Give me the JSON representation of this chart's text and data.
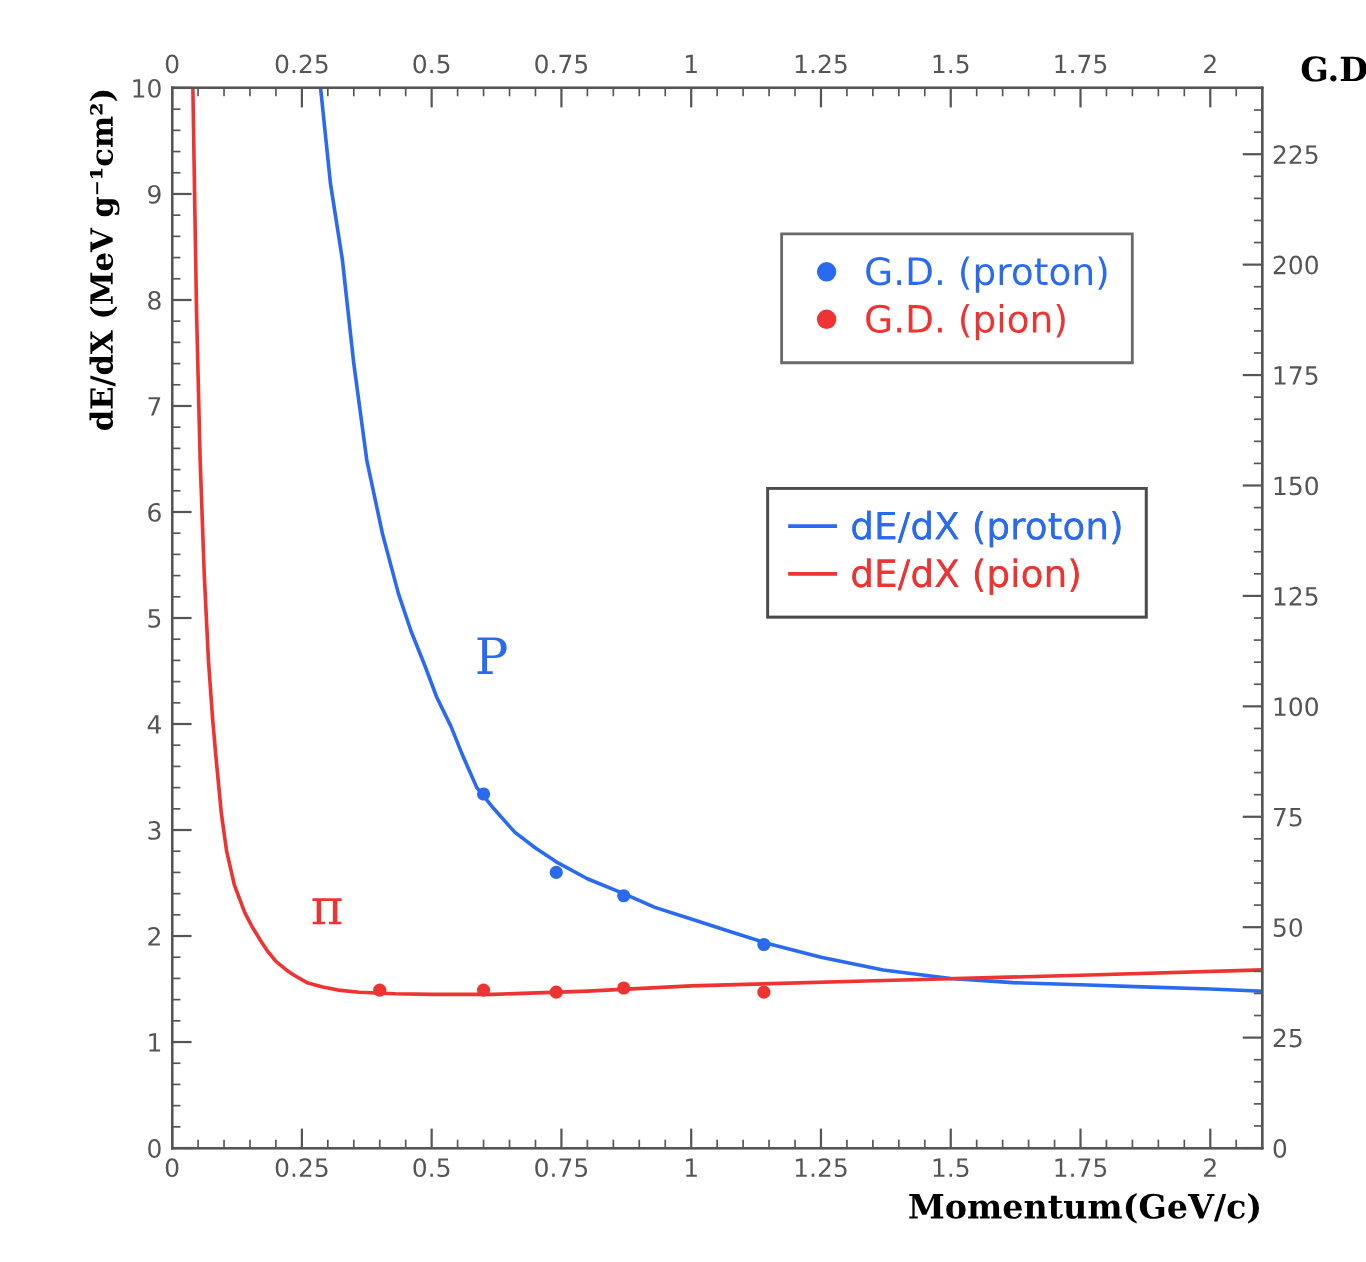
{
  "chart_data": {
    "type": "line",
    "xlabel": "Momentum(GeV/c)",
    "ylabel": "dE/dX (MeV g⁻¹cm²)",
    "y2label": "G.D",
    "xlim": [
      0,
      2.1
    ],
    "xticks": [
      0,
      0.25,
      0.5,
      0.75,
      1,
      1.25,
      1.5,
      1.75,
      2
    ],
    "x2lim": [
      0,
      2.1
    ],
    "x2ticks": [
      0,
      0.25,
      0.5,
      0.75,
      1,
      1.25,
      1.5,
      1.75,
      2
    ],
    "ylim": [
      0,
      10
    ],
    "yticks": [
      0,
      1,
      2,
      3,
      4,
      5,
      6,
      7,
      8,
      9,
      10
    ],
    "y2lim": [
      0,
      240
    ],
    "y2ticks": [
      0,
      25,
      50,
      75,
      100,
      125,
      150,
      175,
      200,
      225
    ],
    "grid": false,
    "legend": "top right",
    "series": [
      {
        "name": "G.D. (proton)",
        "type": "scatter",
        "marker": "circle",
        "color": "#2a6af0",
        "x": [
          0.6,
          0.74,
          0.87,
          1.14
        ],
        "values": [
          3.34,
          2.6,
          2.38,
          1.92
        ]
      },
      {
        "name": "G.D. (pion)",
        "type": "scatter",
        "marker": "circle",
        "color": "#ee3333",
        "x": [
          0.4,
          0.6,
          0.74,
          0.87,
          1.14
        ],
        "values": [
          1.49,
          1.49,
          1.47,
          1.51,
          1.47
        ]
      },
      {
        "name": "dE/dX (proton)",
        "marker": "none",
        "line_style": "solid",
        "color": "#2a6af0",
        "x": [
          0.286,
          0.305,
          0.328,
          0.35,
          0.375,
          0.405,
          0.436,
          0.46,
          0.487,
          0.51,
          0.537,
          0.56,
          0.587,
          0.62,
          0.66,
          0.7,
          0.74,
          0.8,
          0.87,
          0.93,
          1.0,
          1.07,
          1.14,
          1.25,
          1.37,
          1.5,
          1.62,
          1.75,
          1.87,
          2.0,
          2.1
        ],
        "values": [
          10,
          9.1,
          8.38,
          7.4,
          6.49,
          5.8,
          5.23,
          4.88,
          4.55,
          4.25,
          3.98,
          3.7,
          3.4,
          3.2,
          2.98,
          2.83,
          2.7,
          2.54,
          2.4,
          2.27,
          2.16,
          2.05,
          1.94,
          1.8,
          1.68,
          1.6,
          1.56,
          1.54,
          1.52,
          1.5,
          1.48
        ]
      },
      {
        "name": "dE/dX (pion)",
        "marker": "none",
        "line_style": "solid",
        "color": "#ee3333",
        "x": [
          0.04,
          0.047,
          0.054,
          0.062,
          0.07,
          0.078,
          0.085,
          0.095,
          0.105,
          0.12,
          0.14,
          0.155,
          0.17,
          0.185,
          0.2,
          0.22,
          0.235,
          0.26,
          0.29,
          0.32,
          0.36,
          0.43,
          0.5,
          0.62,
          0.8,
          1.0,
          1.37,
          1.75,
          2.1
        ],
        "values": [
          10,
          7.9,
          6.49,
          5.4,
          4.6,
          4.05,
          3.66,
          3.15,
          2.8,
          2.48,
          2.22,
          2.08,
          1.96,
          1.85,
          1.76,
          1.68,
          1.63,
          1.56,
          1.52,
          1.49,
          1.47,
          1.455,
          1.45,
          1.45,
          1.48,
          1.53,
          1.58,
          1.63,
          1.68
        ]
      }
    ],
    "annotations": [
      {
        "text": "P",
        "x": 0.487,
        "y": 4.55
      },
      {
        "text": "π",
        "x": 0.17,
        "y": 1.96
      }
    ]
  }
}
